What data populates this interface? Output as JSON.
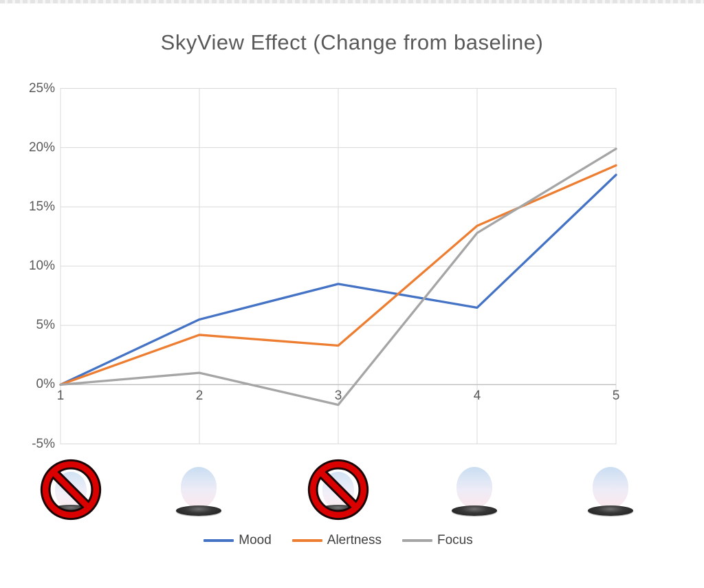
{
  "title": "SkyView Effect (Change from baseline)",
  "chart_data": {
    "type": "line",
    "title": "SkyView Effect (Change from baseline)",
    "x": [
      1,
      2,
      3,
      4,
      5
    ],
    "xticks": [
      "1",
      "2",
      "3",
      "4",
      "5"
    ],
    "series": [
      {
        "name": "Mood",
        "color": "#4472C4",
        "values": [
          0,
          5.5,
          8.5,
          6.5,
          17.7
        ]
      },
      {
        "name": "Alertness",
        "color": "#ED7D31",
        "values": [
          0,
          4.2,
          3.3,
          13.4,
          18.5
        ]
      },
      {
        "name": "Focus",
        "color": "#A5A5A5",
        "values": [
          0,
          1.0,
          -1.7,
          12.8,
          19.9
        ]
      }
    ],
    "ylim": [
      -5,
      25
    ],
    "ytick_values": [
      25,
      20,
      15,
      10,
      5,
      0,
      -5
    ],
    "ytick_labels": [
      "25%",
      "20%",
      "15%",
      "10%",
      "5%",
      "0%",
      "-5%"
    ],
    "grid": true,
    "gridline_color": "#D9D9D9",
    "zero_axis_color": "#BFBFBF",
    "legend_position": "bottom"
  },
  "legend": {
    "items": [
      {
        "label": "Mood"
      },
      {
        "label": "Alertness"
      },
      {
        "label": "Focus"
      }
    ]
  },
  "lamps": {
    "items": [
      {
        "icon": "no-lamp-icon",
        "prohibited": true
      },
      {
        "icon": "lamp-icon",
        "prohibited": false
      },
      {
        "icon": "no-lamp-icon",
        "prohibited": true
      },
      {
        "icon": "lamp-icon",
        "prohibited": false
      },
      {
        "icon": "lamp-icon",
        "prohibited": false
      }
    ],
    "prohibition_color": "#DB0000",
    "prohibition_outline": "#1a0606"
  }
}
